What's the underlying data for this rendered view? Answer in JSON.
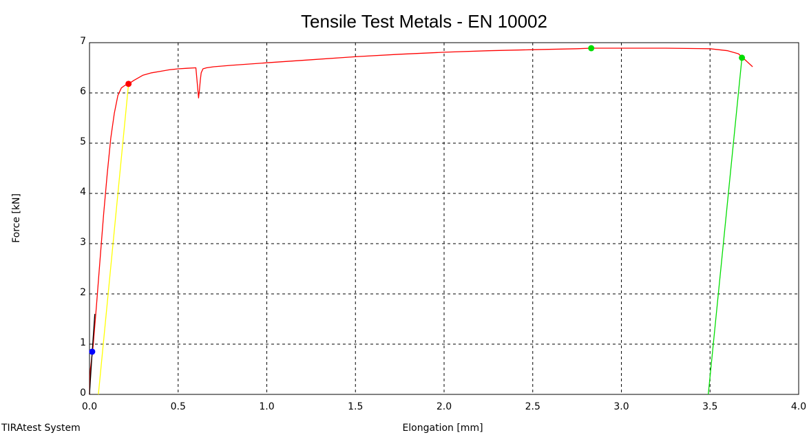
{
  "chart_data": {
    "type": "line",
    "title": "Tensile Test Metals - EN 10002",
    "xlabel": "Elongation [mm]",
    "ylabel": "Force [kN]",
    "footer_text": "TIRAtest System",
    "xlim": [
      0,
      4
    ],
    "ylim": [
      0,
      7
    ],
    "x_ticks": [
      "0.0",
      "0.5",
      "1.0",
      "1.5",
      "2.0",
      "2.5",
      "3.0",
      "3.5",
      "4.0"
    ],
    "y_ticks": [
      "0",
      "1",
      "2",
      "3",
      "4",
      "5",
      "6",
      "7"
    ],
    "grid": true,
    "series": [
      {
        "color": "#ff0000",
        "x": [
          0.0,
          0.005,
          0.02,
          0.04,
          0.06,
          0.08,
          0.1,
          0.12,
          0.14,
          0.16,
          0.18,
          0.2,
          0.22,
          0.25,
          0.3,
          0.35,
          0.4,
          0.45,
          0.5,
          0.55,
          0.6,
          0.605,
          0.61,
          0.615,
          0.62,
          0.625,
          0.63,
          0.64,
          0.66,
          0.7,
          0.8,
          1.0,
          1.25,
          1.5,
          1.75,
          2.0,
          2.25,
          2.5,
          2.75,
          2.83,
          3.0,
          3.25,
          3.5,
          3.6,
          3.66,
          3.7,
          3.74
        ],
        "y": [
          0.0,
          0.5,
          0.95,
          1.8,
          2.7,
          3.6,
          4.4,
          5.1,
          5.6,
          5.95,
          6.1,
          6.15,
          6.18,
          6.25,
          6.35,
          6.4,
          6.43,
          6.46,
          6.48,
          6.49,
          6.5,
          6.3,
          6.1,
          5.9,
          6.05,
          6.25,
          6.4,
          6.48,
          6.5,
          6.52,
          6.55,
          6.6,
          6.66,
          6.72,
          6.77,
          6.81,
          6.84,
          6.86,
          6.88,
          6.89,
          6.89,
          6.89,
          6.88,
          6.84,
          6.78,
          6.65,
          6.52
        ]
      },
      {
        "color": "#000000",
        "x": [
          0.0,
          0.015,
          0.03
        ],
        "y": [
          0.0,
          0.85,
          1.6
        ]
      },
      {
        "color": "#ffff00",
        "x": [
          0.05,
          0.22
        ],
        "y": [
          0.0,
          6.18
        ]
      },
      {
        "color": "#00dd00",
        "x": [
          3.49,
          3.68
        ],
        "y": [
          0.0,
          6.7
        ]
      }
    ],
    "markers": [
      {
        "color": "#0000ff",
        "x": 0.015,
        "y": 0.85
      },
      {
        "color": "#ff0000",
        "x": 0.22,
        "y": 6.18
      },
      {
        "color": "#00dd00",
        "x": 2.83,
        "y": 6.89
      },
      {
        "color": "#00dd00",
        "x": 3.68,
        "y": 6.7
      }
    ]
  }
}
